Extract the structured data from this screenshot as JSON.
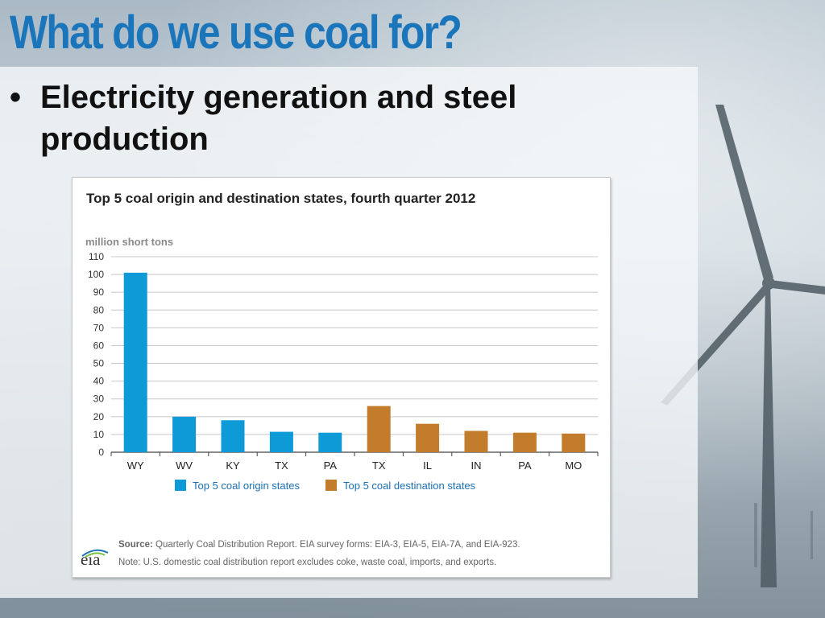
{
  "slide": {
    "title": "What do we use coal for?",
    "bullet_symbol": "•",
    "bullet_text": "Electricity generation and steel production"
  },
  "chart_data": {
    "type": "bar",
    "title": "Top 5 coal origin and destination states, fourth quarter 2012",
    "ylabel": "million short tons",
    "xlabel": "",
    "ylim": [
      0,
      110
    ],
    "yticks": [
      0,
      10,
      20,
      30,
      40,
      50,
      60,
      70,
      80,
      90,
      100,
      110
    ],
    "grid": true,
    "legend_position": "bottom",
    "categories": [
      "WY",
      "WV",
      "KY",
      "TX",
      "PA",
      "TX",
      "IL",
      "IN",
      "PA",
      "MO"
    ],
    "series": [
      {
        "name": "Top 5 coal origin states",
        "color": "#0e9ad7",
        "values": [
          101,
          20,
          18,
          11.5,
          11,
          null,
          null,
          null,
          null,
          null
        ]
      },
      {
        "name": "Top 5 coal destination states",
        "color": "#c27c2c",
        "values": [
          null,
          null,
          null,
          null,
          null,
          26,
          16,
          12,
          11,
          10.5
        ]
      }
    ]
  },
  "footer": {
    "source_label": "Source:",
    "source_text": "Quarterly Coal Distribution Report. EIA survey forms: EIA-3, EIA-5, EIA-7A, and EIA-923.",
    "note_text": "Note: U.S. domestic coal distribution report excludes coke, waste coal, imports, and exports.",
    "logo_text": "eia"
  },
  "colors": {
    "title_blue": "#1b75bb",
    "grid": "#c8c8c8",
    "axis": "#444444"
  }
}
